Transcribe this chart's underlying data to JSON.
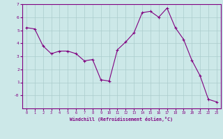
{
  "x": [
    0,
    1,
    2,
    3,
    4,
    5,
    6,
    7,
    8,
    9,
    10,
    11,
    12,
    13,
    14,
    15,
    16,
    17,
    18,
    19,
    20,
    21,
    22,
    23
  ],
  "y": [
    5.2,
    5.1,
    3.8,
    3.2,
    3.4,
    3.4,
    3.2,
    2.65,
    2.75,
    1.2,
    1.1,
    3.5,
    4.1,
    4.8,
    6.35,
    6.45,
    6.0,
    6.7,
    5.2,
    4.3,
    2.7,
    1.5,
    -0.3,
    -0.5
  ],
  "line_color": "#800080",
  "marker": "+",
  "bg_color": "#cce8e8",
  "grid_color": "#aacccc",
  "xlabel": "Windchill (Refroidissement éolien,°C)",
  "xlabel_color": "#800080",
  "tick_color": "#800080",
  "ylim": [
    -1,
    7
  ],
  "xlim": [
    -0.5,
    23.5
  ],
  "yticks": [
    0,
    1,
    2,
    3,
    4,
    5,
    6,
    7
  ],
  "ytick_labels": [
    "-0",
    "1",
    "2",
    "3",
    "4",
    "5",
    "6",
    "7"
  ],
  "xticks": [
    0,
    1,
    2,
    3,
    4,
    5,
    6,
    7,
    8,
    9,
    10,
    11,
    12,
    13,
    14,
    15,
    16,
    17,
    18,
    19,
    20,
    21,
    22,
    23
  ]
}
